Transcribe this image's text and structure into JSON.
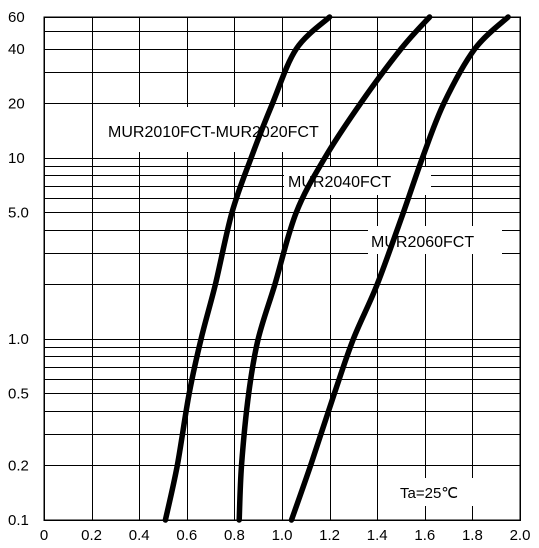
{
  "chart_data": {
    "type": "line",
    "title": "",
    "xlabel": "",
    "ylabel": "",
    "x_scale": "linear",
    "y_scale": "log",
    "xlim": [
      0,
      2.0
    ],
    "ylim": [
      0.1,
      60
    ],
    "grid": true,
    "x_ticks": [
      "0",
      "0.2",
      "0.4",
      "0.6",
      "0.8",
      "1.0",
      "1.2",
      "1.4",
      "1.6",
      "1.8",
      "2.0"
    ],
    "y_ticks": [
      {
        "value": 0.1,
        "label": "0.1"
      },
      {
        "value": 0.2,
        "label": "0.2"
      },
      {
        "value": 0.5,
        "label": "0.5"
      },
      {
        "value": 1,
        "label": "1.0"
      },
      {
        "value": 5,
        "label": "5.0"
      },
      {
        "value": 10,
        "label": "10"
      },
      {
        "value": 20,
        "label": "20"
      },
      {
        "value": 40,
        "label": "40"
      },
      {
        "value": 60,
        "label": "60"
      }
    ],
    "series": [
      {
        "name": "MUR2010FCT-MUR2020FCT",
        "x": [
          0.51,
          0.56,
          0.61,
          0.66,
          0.72,
          0.79,
          0.87,
          0.96,
          1.06,
          1.2
        ],
        "y": [
          0.1,
          0.2,
          0.5,
          1.0,
          2.0,
          5.0,
          10,
          20,
          40,
          60
        ]
      },
      {
        "name": "MUR2040FCT",
        "x": [
          0.82,
          0.83,
          0.86,
          0.9,
          0.97,
          1.06,
          1.18,
          1.33,
          1.5,
          1.62
        ],
        "y": [
          0.1,
          0.2,
          0.5,
          1.0,
          2.0,
          5.0,
          10,
          20,
          40,
          60
        ]
      },
      {
        "name": "MUR2060FCT",
        "x": [
          1.04,
          1.12,
          1.22,
          1.3,
          1.4,
          1.51,
          1.59,
          1.68,
          1.81,
          1.95
        ],
        "y": [
          0.1,
          0.2,
          0.5,
          1.0,
          2.0,
          5.0,
          10,
          20,
          40,
          60
        ]
      }
    ],
    "annotations": [
      "Ta=25℃"
    ]
  }
}
